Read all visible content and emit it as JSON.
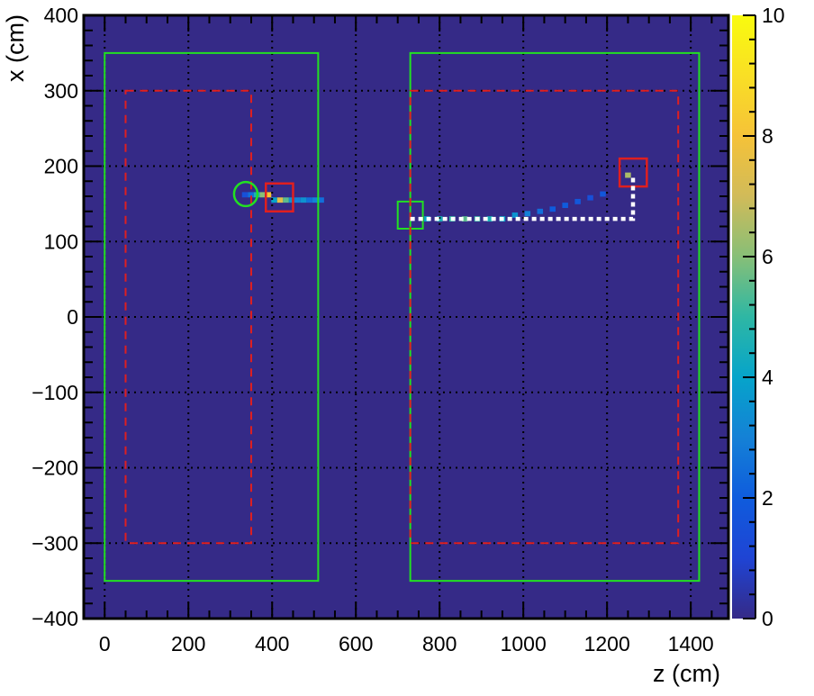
{
  "chart_data": {
    "type": "heatmap",
    "title": "",
    "xlabel": "z (cm)",
    "ylabel": "x (cm)",
    "xlim": [
      -50,
      1490
    ],
    "ylim": [
      -400,
      400
    ],
    "x_ticks": [
      0,
      200,
      400,
      600,
      800,
      1000,
      1200,
      1400
    ],
    "x_tick_labels": [
      "0",
      "200",
      "400",
      "600",
      "800",
      "1000",
      "1200",
      "1400"
    ],
    "y_ticks": [
      -400,
      -300,
      -200,
      -100,
      0,
      100,
      200,
      300,
      400
    ],
    "y_tick_labels": [
      "−400",
      "−300",
      "−200",
      "−100",
      "0",
      "100",
      "200",
      "300",
      "400"
    ],
    "grid": true,
    "colorbar": {
      "range": [
        0,
        10
      ],
      "ticks": [
        0,
        2,
        4,
        6,
        8,
        10
      ],
      "tick_labels": [
        "0",
        "2",
        "4",
        "6",
        "8",
        "10"
      ]
    },
    "background_color": "#352a87",
    "cell_size": {
      "z": 14,
      "x": 7
    },
    "cells": [
      {
        "z": 335,
        "x": 162,
        "v": 1.5
      },
      {
        "z": 349,
        "x": 162,
        "v": 2.5
      },
      {
        "z": 363,
        "x": 162,
        "v": 4.5
      },
      {
        "z": 377,
        "x": 162,
        "v": 6.0
      },
      {
        "z": 391,
        "x": 162,
        "v": 8.0
      },
      {
        "z": 405,
        "x": 155,
        "v": 4.0
      },
      {
        "z": 419,
        "x": 155,
        "v": 7.5
      },
      {
        "z": 433,
        "x": 155,
        "v": 5.5
      },
      {
        "z": 447,
        "x": 155,
        "v": 3.5
      },
      {
        "z": 461,
        "x": 155,
        "v": 3.0
      },
      {
        "z": 475,
        "x": 155,
        "v": 3.5
      },
      {
        "z": 489,
        "x": 155,
        "v": 2.5
      },
      {
        "z": 503,
        "x": 155,
        "v": 3.0
      },
      {
        "z": 517,
        "x": 155,
        "v": 2.5
      },
      {
        "z": 770,
        "x": 130,
        "v": 4.0
      },
      {
        "z": 800,
        "x": 130,
        "v": 4.5
      },
      {
        "z": 830,
        "x": 130,
        "v": 5.0
      },
      {
        "z": 860,
        "x": 130,
        "v": 5.5
      },
      {
        "z": 890,
        "x": 130,
        "v": 5.0
      },
      {
        "z": 920,
        "x": 130,
        "v": 4.5
      },
      {
        "z": 950,
        "x": 130,
        "v": 4.0
      },
      {
        "z": 980,
        "x": 135,
        "v": 3.5
      },
      {
        "z": 1010,
        "x": 137,
        "v": 3.0
      },
      {
        "z": 1040,
        "x": 140,
        "v": 2.5
      },
      {
        "z": 1070,
        "x": 143,
        "v": 2.0
      },
      {
        "z": 1100,
        "x": 148,
        "v": 2.0
      },
      {
        "z": 1130,
        "x": 153,
        "v": 1.8
      },
      {
        "z": 1160,
        "x": 158,
        "v": 1.5
      },
      {
        "z": 1190,
        "x": 163,
        "v": 1.8
      },
      {
        "z": 1250,
        "x": 188,
        "v": 6.5
      }
    ],
    "overlays": {
      "green_rects": [
        {
          "z1": 0,
          "z2": 510,
          "x1": -350,
          "x2": 350
        },
        {
          "z1": 730,
          "z2": 1420,
          "x1": -350,
          "x2": 350
        },
        {
          "z1": 700,
          "z2": 760,
          "x1": 117,
          "x2": 153
        }
      ],
      "red_dashed_rects": [
        {
          "z1": 50,
          "z2": 350,
          "x1": -300,
          "x2": 300
        },
        {
          "z1": 730,
          "z2": 1370,
          "x1": -300,
          "x2": 300
        }
      ],
      "red_squares": [
        {
          "z1": 385,
          "z2": 450,
          "x1": 140,
          "x2": 177
        },
        {
          "z1": 1230,
          "z2": 1295,
          "x1": 173,
          "x2": 210
        }
      ],
      "green_circles": [
        {
          "z": 337,
          "x": 163,
          "rz": 28,
          "rx": 16
        }
      ],
      "white_dotted_path": [
        {
          "z": 730,
          "x": 130
        },
        {
          "z": 1262,
          "x": 130
        },
        {
          "z": 1262,
          "x": 188
        }
      ],
      "colors": {
        "green": "#22e022",
        "red": "#e01f1f",
        "white": "#ffffff",
        "grid": "#000000"
      }
    }
  }
}
